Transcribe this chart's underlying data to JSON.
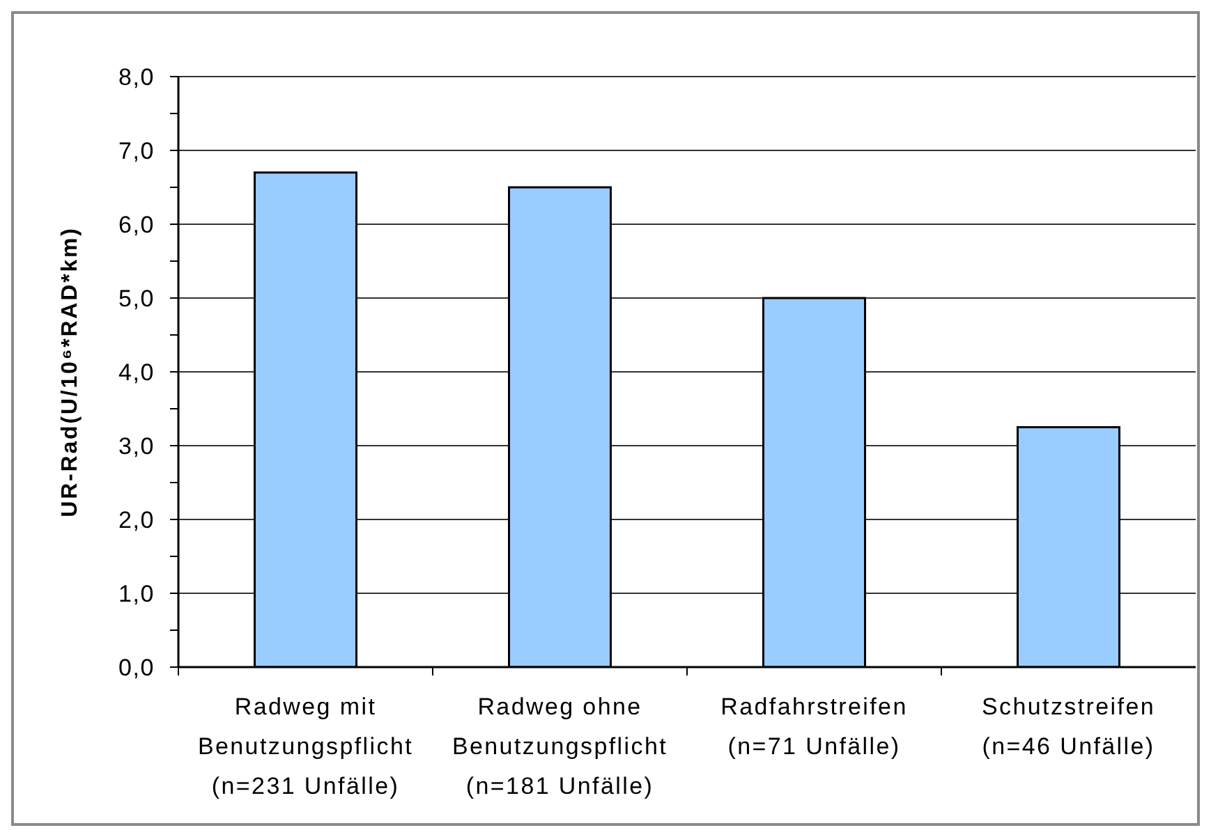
{
  "chart_data": {
    "type": "bar",
    "ylabel": "UR-Rad(U/10⁶*RAD*km)",
    "categories": [
      "Radweg mit\nBenutzungspflicht\n(n=231 Unfälle)",
      "Radweg ohne\nBenutzungspflicht\n(n=181 Unfälle)",
      "Radfahrstreifen\n(n=71 Unfälle)",
      "Schutzstreifen\n(n=46 Unfälle)"
    ],
    "values": [
      6.7,
      6.5,
      5.0,
      3.25
    ],
    "color": "#99ccff",
    "ylim": [
      0,
      8
    ],
    "yticks": [
      {
        "value": 0,
        "label": "0,0"
      },
      {
        "value": 0.5,
        "label": null
      },
      {
        "value": 1,
        "label": "1,0"
      },
      {
        "value": 1.5,
        "label": null
      },
      {
        "value": 2,
        "label": "2,0"
      },
      {
        "value": 2.5,
        "label": null
      },
      {
        "value": 3,
        "label": "3,0"
      },
      {
        "value": 3.5,
        "label": null
      },
      {
        "value": 4,
        "label": "4,0"
      },
      {
        "value": 4.5,
        "label": null
      },
      {
        "value": 5,
        "label": "5,0"
      },
      {
        "value": 5.5,
        "label": null
      },
      {
        "value": 6,
        "label": "6,0"
      },
      {
        "value": 6.5,
        "label": null
      },
      {
        "value": 7,
        "label": "7,0"
      },
      {
        "value": 7.5,
        "label": null
      },
      {
        "value": 8,
        "label": "8,0"
      }
    ],
    "grid": "y"
  }
}
